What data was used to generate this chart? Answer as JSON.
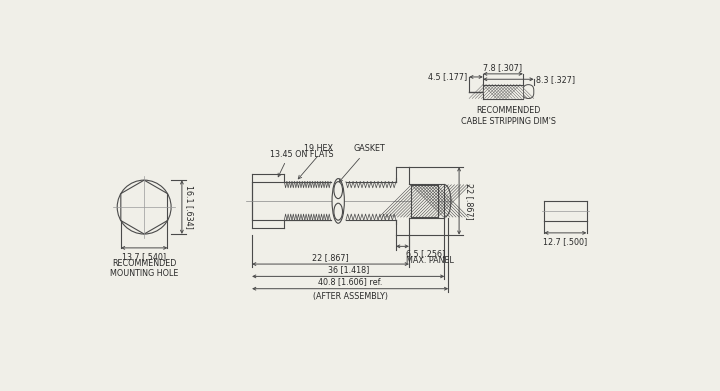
{
  "bg_color": "#f0efe8",
  "line_color": "#4a4a4a",
  "text_color": "#2a2a2a",
  "dim_color": "#4a4a4a",
  "annotations": {
    "hex_label": "19 HEX",
    "gasket_label": "GASKET",
    "flats_label": "13.45 ON FLATS",
    "rec_mounting": "RECOMMENDED\nMOUNTING HOLE",
    "rec_cable": "RECOMMENDED\nCABLE STRIPPING DIM'S",
    "panel_label": "6.5 [.256]\nMAX. PANEL",
    "after_assembly": "(AFTER ASSEMBLY)"
  },
  "dimensions": {
    "d1": "13.7 [.540]",
    "d2": "16.1 [.634]",
    "d3": "22 [.867]",
    "d5": "22 [.867]",
    "d6": "36 [1.418]",
    "d7": "40.8 [1.606] ref.",
    "d8": "12.7 [.500]",
    "d9": "4.5 [.177]",
    "d10": "7.8 [.307]",
    "d11": "8.3 [.327]"
  }
}
